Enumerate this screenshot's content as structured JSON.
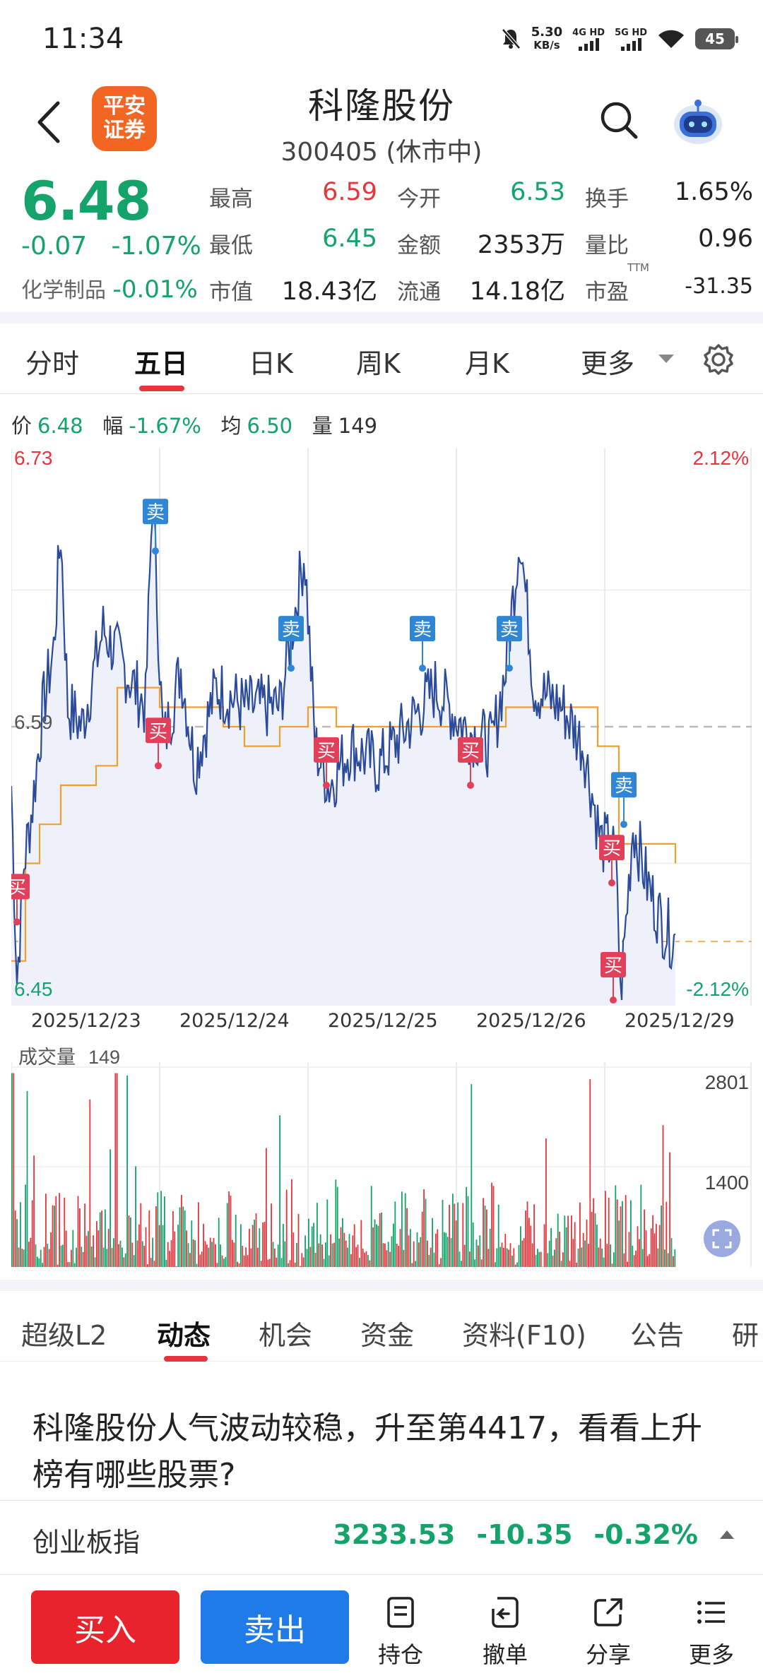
{
  "status": {
    "time": "11:34",
    "net_speed": "5.30",
    "net_unit": "KB/s",
    "sig1": "4G HD",
    "sig2": "5G HD",
    "battery": "45"
  },
  "header": {
    "broker_logo_line1": "平安",
    "broker_logo_line2": "证券",
    "stock_name": "科隆股份",
    "stock_code": "300405 (休市中)"
  },
  "quote": {
    "price": "6.48",
    "change": "-0.07",
    "change_pct": "-1.07%",
    "sector_name": "化学制品",
    "sector_change": "-0.01%",
    "fields": [
      {
        "label": "最高",
        "value": "6.59"
      },
      {
        "label": "今开",
        "value": "6.53"
      },
      {
        "label": "换手",
        "value": "1.65%"
      },
      {
        "label": "最低",
        "value": "6.45"
      },
      {
        "label": "金额",
        "value": "2353万"
      },
      {
        "label": "量比",
        "value": "0.96"
      },
      {
        "label": "市值",
        "value": "18.43亿"
      },
      {
        "label": "流通",
        "value": "14.18亿"
      },
      {
        "label": "市盈",
        "value": "-31.35"
      }
    ],
    "ttm": "TTM"
  },
  "period_tabs": [
    "分时",
    "五日",
    "日K",
    "周K",
    "月K",
    "更多"
  ],
  "info_line": {
    "price_label": "价",
    "price": "6.48",
    "amp_label": "幅",
    "amp": "-1.67%",
    "avg_label": "均",
    "avg": "6.50",
    "vol_label": "量",
    "vol": "149"
  },
  "chart_data": {
    "type": "line",
    "price_axis": {
      "max": "6.73",
      "min": "6.45",
      "ref": "6.59"
    },
    "pct_axis": {
      "max": "2.12%",
      "min": "-2.12%"
    },
    "dates": [
      "2025/12/23",
      "2025/12/24",
      "2025/12/25",
      "2025/12/26",
      "2025/12/29"
    ],
    "markers": [
      "买",
      "卖",
      "买",
      "卖",
      "买",
      "卖",
      "买",
      "卖",
      "卖",
      "买",
      "买"
    ],
    "volume_label": "成交量",
    "volume_value": "149",
    "volume_ticks": [
      "2801",
      "1400"
    ]
  },
  "news_tabs": [
    "超级L2",
    "动态",
    "机会",
    "资金",
    "资料(F10)",
    "公告",
    "研"
  ],
  "news_headline": "科隆股份人气波动较稳，升至第4417，看看上升榜有哪些股票?",
  "index_bar": {
    "name": "创业板指",
    "value": "3233.53",
    "change": "-10.35",
    "change_pct": "-0.32%"
  },
  "bottom_bar": {
    "buy": "买入",
    "sell": "卖出",
    "items": [
      "持仓",
      "撤单",
      "分享",
      "更多"
    ]
  }
}
